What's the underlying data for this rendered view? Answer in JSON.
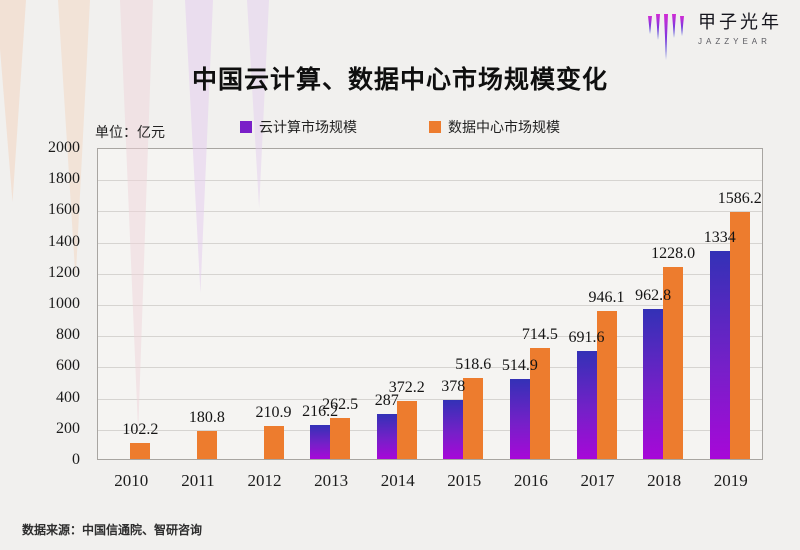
{
  "logo": {
    "name": "甲子光年",
    "subtitle": "JAZZYEAR"
  },
  "title": "中国云计算、数据中心市场规模变化",
  "unit_label": "单位：亿元",
  "source": "数据来源：中国信通院、智研咨询",
  "colors": {
    "cloud_top": "#3331b6",
    "cloud_bottom": "#a708d8",
    "cloud_legend": "#7a1fc8",
    "datacenter": "#ed7c2e",
    "background": "#f1f0ee"
  },
  "chart_data": {
    "type": "bar",
    "title": "中国云计算、数据中心市场规模变化",
    "categories": [
      "2010",
      "2011",
      "2012",
      "2013",
      "2014",
      "2015",
      "2016",
      "2017",
      "2018",
      "2019"
    ],
    "series": [
      {
        "name": "云计算市场规模",
        "legend_color": "#7a1fc8",
        "values": [
          null,
          null,
          null,
          216.2,
          287,
          378,
          514.9,
          691.6,
          962.8,
          1334
        ],
        "labels": [
          "",
          "",
          "",
          "216.2",
          "287",
          "378",
          "514.9",
          "691.6",
          "962.8",
          "1334"
        ]
      },
      {
        "name": "数据中心市场规模",
        "legend_color": "#ed7c2e",
        "values": [
          102.2,
          180.8,
          210.9,
          262.5,
          372.2,
          518.6,
          714.5,
          946.1,
          1228.0,
          1586.2
        ],
        "labels": [
          "102.2",
          "180.8",
          "210.9",
          "262.5",
          "372.2",
          "518.6",
          "714.5",
          "946.1",
          "1228.0",
          "1586.2"
        ]
      }
    ],
    "xlabel": "",
    "ylabel": "单位：亿元",
    "ylim": [
      0,
      2000
    ],
    "ytick_step": 200,
    "grid": true,
    "legend_position": "top"
  }
}
